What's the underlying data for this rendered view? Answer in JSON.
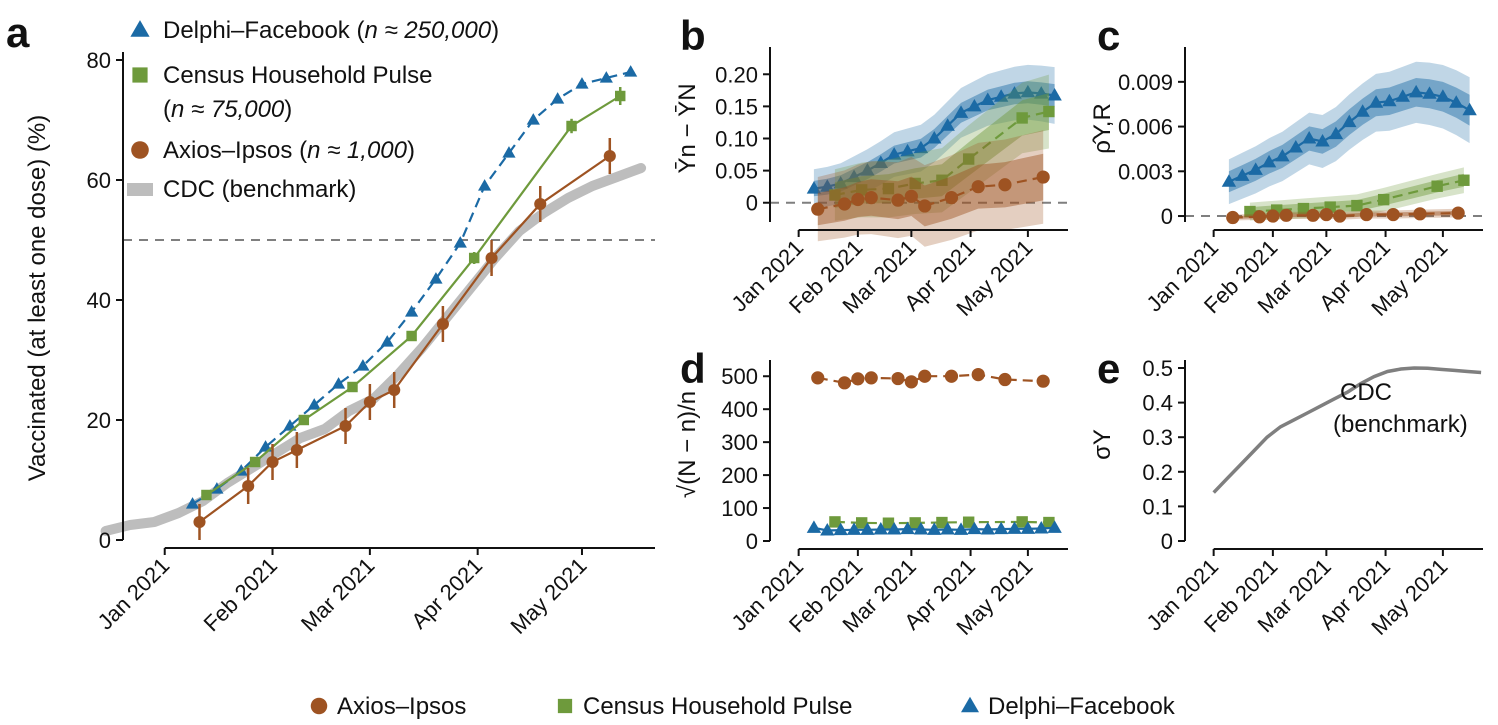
{
  "colors": {
    "axios": "#9e5322",
    "census": "#6e9a3c",
    "delphi": "#1b6aa5",
    "cdc": "#bdbdbd",
    "cdc_line": "#7f7f7f",
    "dashed": "#7f7f7f"
  },
  "bottom_legend": [
    {
      "series": "axios",
      "marker": "circle",
      "label": "Axios–Ipsos"
    },
    {
      "series": "census",
      "marker": "square",
      "label": "Census Household Pulse"
    },
    {
      "series": "delphi",
      "marker": "triangle",
      "label": "Delphi–Facebook"
    }
  ],
  "chart_data": [
    {
      "panel": "a",
      "type": "line",
      "xlabel": "",
      "ylabel": "Vaccinated (at least one dose) (%)",
      "x_ticks": [
        "Jan 2021",
        "Feb 2021",
        "Mar 2021",
        "Apr 2021",
        "May 2021"
      ],
      "y_ticks": [
        "0",
        "20",
        "40",
        "60",
        "80"
      ],
      "ylim": [
        0,
        80
      ],
      "xlim": [
        "2020-12-20",
        "2021-05-21"
      ],
      "reference_line_y": 50,
      "legend_placement": "top-left",
      "legend": [
        {
          "series": "delphi",
          "marker": "triangle",
          "label": "Delphi–Facebook",
          "n_text": "n ≈ 250,000"
        },
        {
          "series": "census",
          "marker": "square",
          "label": "Census Household Pulse",
          "n_text": "n ≈ 75,000"
        },
        {
          "series": "axios",
          "marker": "circle",
          "label": "Axios–Ipsos",
          "n_text": "n ≈ 1,000"
        },
        {
          "series": "cdc",
          "marker": "band",
          "label": "CDC (benchmark)"
        }
      ],
      "series": [
        {
          "name": "CDC (benchmark)",
          "key": "cdc",
          "style": "band",
          "x": [
            "2020-12-15",
            "2020-12-22",
            "2020-12-29",
            "2021-01-05",
            "2021-01-12",
            "2021-01-19",
            "2021-01-26",
            "2021-02-02",
            "2021-02-09",
            "2021-02-16",
            "2021-02-23",
            "2021-03-02",
            "2021-03-09",
            "2021-03-16",
            "2021-03-23",
            "2021-03-30",
            "2021-04-06",
            "2021-04-13",
            "2021-04-20",
            "2021-04-27",
            "2021-05-04",
            "2021-05-11",
            "2021-05-18"
          ],
          "y": [
            1.5,
            2.5,
            3.0,
            4.5,
            6.5,
            9.5,
            12.0,
            14.5,
            17.0,
            18.5,
            21.5,
            23.5,
            27.5,
            32.0,
            37.0,
            42.0,
            47.0,
            51.5,
            54.5,
            57.0,
            59.0,
            60.5,
            62.0
          ]
        },
        {
          "name": "Delphi–Facebook",
          "key": "delphi",
          "style": "dashed",
          "x": [
            "2021-01-09",
            "2021-01-16",
            "2021-01-23",
            "2021-01-30",
            "2021-02-06",
            "2021-02-13",
            "2021-02-20",
            "2021-02-27",
            "2021-03-06",
            "2021-03-13",
            "2021-03-20",
            "2021-03-27",
            "2021-04-03",
            "2021-04-10",
            "2021-04-17",
            "2021-04-24",
            "2021-05-01",
            "2021-05-08",
            "2021-05-15"
          ],
          "y": [
            6.0,
            8.5,
            11.5,
            15.5,
            19.0,
            22.5,
            26.0,
            29.0,
            33.0,
            38.0,
            43.5,
            49.5,
            59.0,
            64.5,
            70.0,
            73.5,
            76.0,
            77.0,
            78.0
          ]
        },
        {
          "name": "Census Household Pulse",
          "key": "census",
          "style": "solid",
          "x": [
            "2021-01-13",
            "2021-01-27",
            "2021-02-10",
            "2021-02-24",
            "2021-03-13",
            "2021-03-31",
            "2021-04-28",
            "2021-05-12"
          ],
          "y": [
            7.5,
            13.0,
            20.0,
            25.5,
            34.0,
            47.0,
            69.0,
            74.0
          ],
          "err": [
            0.5,
            0.5,
            0.5,
            0.8,
            0.8,
            1.0,
            1.2,
            1.5
          ]
        },
        {
          "name": "Axios–Ipsos",
          "key": "axios",
          "style": "solid",
          "x": [
            "2021-01-11",
            "2021-01-25",
            "2021-02-01",
            "2021-02-08",
            "2021-02-22",
            "2021-03-01",
            "2021-03-08",
            "2021-03-22",
            "2021-04-05",
            "2021-04-19",
            "2021-05-09"
          ],
          "y": [
            3.0,
            9.0,
            13.0,
            15.0,
            19.0,
            23.0,
            25.0,
            36.0,
            47.0,
            56.0,
            64.0
          ],
          "err": [
            3.0,
            3.0,
            3.0,
            3.0,
            3.0,
            3.0,
            3.0,
            3.0,
            3.0,
            3.0,
            3.0
          ]
        }
      ]
    },
    {
      "panel": "b",
      "type": "line",
      "ylabel": "Ȳn − ȲN",
      "x_ticks": [
        "Jan 2021",
        "Feb 2021",
        "Mar 2021",
        "Apr 2021",
        "May 2021"
      ],
      "y_ticks": [
        "0",
        "0.05",
        "0.10",
        "0.15",
        "0.20"
      ],
      "ylim": [
        -0.03,
        0.23
      ],
      "reference_line_y": 0,
      "series": [
        {
          "name": "Delphi–Facebook",
          "key": "delphi",
          "x": [
            "2021-01-09",
            "2021-01-16",
            "2021-01-23",
            "2021-01-30",
            "2021-02-06",
            "2021-02-13",
            "2021-02-20",
            "2021-02-27",
            "2021-03-06",
            "2021-03-13",
            "2021-03-20",
            "2021-03-27",
            "2021-04-03",
            "2021-04-10",
            "2021-04-17",
            "2021-04-24",
            "2021-05-01",
            "2021-05-08",
            "2021-05-15"
          ],
          "y": [
            0.022,
            0.025,
            0.03,
            0.04,
            0.05,
            0.062,
            0.075,
            0.08,
            0.085,
            0.1,
            0.12,
            0.14,
            0.15,
            0.16,
            0.165,
            0.17,
            0.172,
            0.17,
            0.167
          ],
          "band_inner": 0.012,
          "band_outer": 0.03
        },
        {
          "name": "Census Household Pulse",
          "key": "census",
          "x": [
            "2021-01-20",
            "2021-02-03",
            "2021-02-17",
            "2021-03-03",
            "2021-03-17",
            "2021-03-31",
            "2021-04-28",
            "2021-05-12"
          ],
          "y": [
            0.012,
            0.02,
            0.022,
            0.03,
            0.035,
            0.068,
            0.132,
            0.142
          ],
          "band_inner": 0.02,
          "band_outer": 0.04
        },
        {
          "name": "Axios–Ipsos",
          "key": "axios",
          "x": [
            "2021-01-11",
            "2021-01-25",
            "2021-02-01",
            "2021-02-08",
            "2021-02-22",
            "2021-03-01",
            "2021-03-08",
            "2021-03-22",
            "2021-04-05",
            "2021-04-19",
            "2021-05-09"
          ],
          "y": [
            -0.01,
            -0.002,
            0.005,
            0.008,
            0.004,
            0.01,
            -0.005,
            0.008,
            0.025,
            0.028,
            0.04
          ],
          "band_inner": 0.025,
          "band_outer": 0.05
        }
      ]
    },
    {
      "panel": "c",
      "type": "line",
      "ylabel": "ρ̂Y,R",
      "x_ticks": [
        "Jan 2021",
        "Feb 2021",
        "Mar 2021",
        "Apr 2021",
        "May 2021"
      ],
      "y_ticks": [
        "0",
        "0.003",
        "0.006",
        "0.009"
      ],
      "ylim": [
        -0.0004,
        0.0108
      ],
      "reference_line_y": 0,
      "series": [
        {
          "name": "Delphi–Facebook",
          "key": "delphi",
          "x": [
            "2021-01-09",
            "2021-01-16",
            "2021-01-23",
            "2021-01-30",
            "2021-02-06",
            "2021-02-13",
            "2021-02-20",
            "2021-02-27",
            "2021-03-06",
            "2021-03-13",
            "2021-03-20",
            "2021-03-27",
            "2021-04-03",
            "2021-04-10",
            "2021-04-17",
            "2021-04-24",
            "2021-05-01",
            "2021-05-08",
            "2021-05-15"
          ],
          "y": [
            0.0023,
            0.0027,
            0.0031,
            0.0036,
            0.004,
            0.0046,
            0.0052,
            0.005,
            0.0055,
            0.0063,
            0.007,
            0.0076,
            0.0077,
            0.008,
            0.0083,
            0.0082,
            0.008,
            0.0076,
            0.0071
          ],
          "band_inner": 0.0007,
          "band_outer": 0.0015
        },
        {
          "name": "Census Household Pulse",
          "key": "census",
          "x": [
            "2021-01-20",
            "2021-02-03",
            "2021-02-17",
            "2021-03-03",
            "2021-03-17",
            "2021-03-31",
            "2021-04-28",
            "2021-05-12"
          ],
          "y": [
            0.0003,
            0.0004,
            0.0005,
            0.0006,
            0.0007,
            0.0011,
            0.002,
            0.0024
          ],
          "band_inner": 0.0003,
          "band_outer": 0.0006
        },
        {
          "name": "Axios–Ipsos",
          "key": "axios",
          "x": [
            "2021-01-11",
            "2021-01-25",
            "2021-02-01",
            "2021-02-08",
            "2021-02-22",
            "2021-03-01",
            "2021-03-08",
            "2021-03-22",
            "2021-04-05",
            "2021-04-19",
            "2021-05-09"
          ],
          "y": [
            -0.0001,
            -5e-05,
            0.0,
            5e-05,
            5e-05,
            0.0001,
            0.0,
            0.0001,
            0.0001,
            0.00015,
            0.0002
          ],
          "band_inner": 0.0001,
          "band_outer": 0.0002
        }
      ]
    },
    {
      "panel": "d",
      "type": "line",
      "ylabel": "√(N − n)/n",
      "x_ticks": [
        "Jan 2021",
        "Feb 2021",
        "Mar 2021",
        "Apr 2021",
        "May 2021"
      ],
      "y_ticks": [
        "0",
        "100",
        "200",
        "300",
        "400",
        "500"
      ],
      "ylim": [
        0,
        525
      ],
      "series": [
        {
          "name": "Axios–Ipsos",
          "key": "axios",
          "x": [
            "2021-01-11",
            "2021-01-25",
            "2021-02-01",
            "2021-02-08",
            "2021-02-22",
            "2021-03-01",
            "2021-03-08",
            "2021-03-22",
            "2021-04-05",
            "2021-04-19",
            "2021-05-09"
          ],
          "y": [
            495,
            480,
            492,
            495,
            493,
            483,
            500,
            500,
            505,
            490,
            485
          ]
        },
        {
          "name": "Census Household Pulse",
          "key": "census",
          "x": [
            "2021-01-20",
            "2021-02-03",
            "2021-02-17",
            "2021-03-03",
            "2021-03-17",
            "2021-03-31",
            "2021-04-28",
            "2021-05-12"
          ],
          "y": [
            58,
            55,
            54,
            55,
            56,
            57,
            58,
            56
          ]
        },
        {
          "name": "Delphi–Facebook",
          "key": "delphi",
          "x": [
            "2021-01-09",
            "2021-01-16",
            "2021-01-23",
            "2021-01-30",
            "2021-02-06",
            "2021-02-13",
            "2021-02-20",
            "2021-02-27",
            "2021-03-06",
            "2021-03-13",
            "2021-03-20",
            "2021-03-27",
            "2021-04-03",
            "2021-04-10",
            "2021-04-17",
            "2021-04-24",
            "2021-05-01",
            "2021-05-08",
            "2021-05-15"
          ],
          "y": [
            40,
            32,
            33,
            34,
            34,
            35,
            35,
            36,
            35,
            34,
            35,
            34,
            36,
            35,
            36,
            37,
            37,
            38,
            40
          ]
        }
      ]
    },
    {
      "panel": "e",
      "type": "line",
      "ylabel": "σY",
      "x_ticks": [
        "Jan 2021",
        "Feb 2021",
        "Mar 2021",
        "Apr 2021",
        "May 2021"
      ],
      "y_ticks": [
        "0",
        "0.1",
        "0.2",
        "0.3",
        "0.4",
        "0.5"
      ],
      "ylim": [
        0,
        0.5
      ],
      "annotation": [
        "CDC",
        "(benchmark)"
      ],
      "series": [
        {
          "name": "CDC (benchmark)",
          "key": "cdc_line",
          "x": [
            "2021-01-01",
            "2021-01-08",
            "2021-01-15",
            "2021-01-22",
            "2021-01-29",
            "2021-02-05",
            "2021-02-12",
            "2021-02-19",
            "2021-02-26",
            "2021-03-05",
            "2021-03-12",
            "2021-03-19",
            "2021-03-26",
            "2021-04-02",
            "2021-04-09",
            "2021-04-16",
            "2021-04-23",
            "2021-04-30",
            "2021-05-07",
            "2021-05-14",
            "2021-05-21"
          ],
          "y": [
            0.14,
            0.18,
            0.22,
            0.26,
            0.3,
            0.33,
            0.35,
            0.37,
            0.39,
            0.41,
            0.43,
            0.455,
            0.475,
            0.49,
            0.497,
            0.5,
            0.499,
            0.496,
            0.493,
            0.49,
            0.487
          ]
        }
      ]
    }
  ]
}
